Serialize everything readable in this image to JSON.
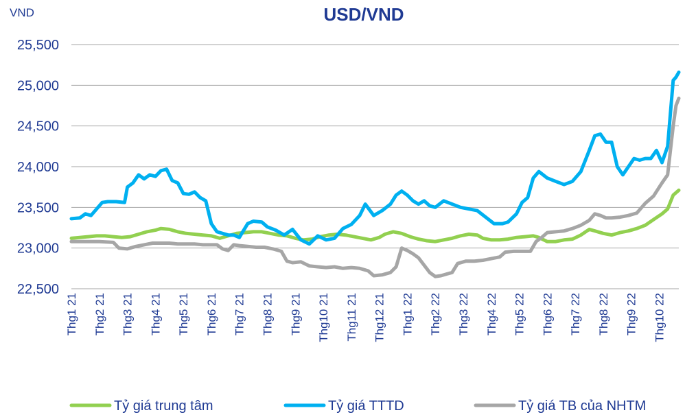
{
  "chart_data": {
    "type": "line",
    "title": "USD/VND",
    "unit_label": "VND",
    "ylim": [
      22500,
      25500
    ],
    "yticks": [
      22500,
      23000,
      23500,
      24000,
      24500,
      25000,
      25500
    ],
    "ytick_labels": [
      "22,500",
      "23,000",
      "23,500",
      "24,000",
      "24,500",
      "25,000",
      "25,500"
    ],
    "categories": [
      "Thg1 21",
      "Thg2 21",
      "Thg3 21",
      "Thg4 21",
      "Thg5 21",
      "Thg6 21",
      "Thg7 21",
      "Thg8 21",
      "Thg9 21",
      "Thg10 21",
      "Thg11 21",
      "Thg12 21",
      "Thg1 22",
      "Thg2 22",
      "Thg3 22",
      "Thg4 22",
      "Thg5 22",
      "Thg6 22",
      "Thg7 22",
      "Thg8 22",
      "Thg9 22",
      "Thg10 22"
    ],
    "x_end": 21.7,
    "grid": "horizontal",
    "legend_position": "bottom",
    "series": [
      {
        "name": "Tỷ giá trung tâm",
        "color": "#92d050",
        "points": [
          [
            0,
            23120
          ],
          [
            0.3,
            23130
          ],
          [
            0.6,
            23140
          ],
          [
            0.9,
            23150
          ],
          [
            1.2,
            23150
          ],
          [
            1.5,
            23140
          ],
          [
            1.8,
            23130
          ],
          [
            2.1,
            23140
          ],
          [
            2.4,
            23170
          ],
          [
            2.7,
            23200
          ],
          [
            3.0,
            23220
          ],
          [
            3.2,
            23240
          ],
          [
            3.5,
            23230
          ],
          [
            3.8,
            23200
          ],
          [
            4.1,
            23180
          ],
          [
            4.4,
            23170
          ],
          [
            4.7,
            23160
          ],
          [
            5.0,
            23150
          ],
          [
            5.3,
            23120
          ],
          [
            5.6,
            23150
          ],
          [
            5.9,
            23180
          ],
          [
            6.2,
            23190
          ],
          [
            6.5,
            23200
          ],
          [
            6.8,
            23200
          ],
          [
            7.1,
            23180
          ],
          [
            7.4,
            23160
          ],
          [
            7.7,
            23150
          ],
          [
            8.0,
            23120
          ],
          [
            8.3,
            23100
          ],
          [
            8.6,
            23110
          ],
          [
            8.9,
            23140
          ],
          [
            9.2,
            23160
          ],
          [
            9.5,
            23170
          ],
          [
            9.8,
            23160
          ],
          [
            10.1,
            23140
          ],
          [
            10.4,
            23120
          ],
          [
            10.7,
            23100
          ],
          [
            11.0,
            23130
          ],
          [
            11.2,
            23170
          ],
          [
            11.5,
            23200
          ],
          [
            11.8,
            23180
          ],
          [
            12.1,
            23140
          ],
          [
            12.4,
            23110
          ],
          [
            12.7,
            23090
          ],
          [
            13.0,
            23080
          ],
          [
            13.3,
            23100
          ],
          [
            13.6,
            23120
          ],
          [
            13.9,
            23150
          ],
          [
            14.2,
            23170
          ],
          [
            14.5,
            23160
          ],
          [
            14.7,
            23120
          ],
          [
            15.0,
            23100
          ],
          [
            15.3,
            23100
          ],
          [
            15.6,
            23110
          ],
          [
            15.9,
            23130
          ],
          [
            16.2,
            23140
          ],
          [
            16.5,
            23150
          ],
          [
            16.7,
            23130
          ],
          [
            17.0,
            23080
          ],
          [
            17.3,
            23080
          ],
          [
            17.6,
            23100
          ],
          [
            17.9,
            23110
          ],
          [
            18.2,
            23160
          ],
          [
            18.5,
            23230
          ],
          [
            18.7,
            23210
          ],
          [
            19.0,
            23180
          ],
          [
            19.3,
            23160
          ],
          [
            19.6,
            23190
          ],
          [
            19.9,
            23210
          ],
          [
            20.2,
            23240
          ],
          [
            20.5,
            23280
          ],
          [
            20.8,
            23350
          ],
          [
            21.1,
            23420
          ],
          [
            21.3,
            23480
          ],
          [
            21.5,
            23650
          ],
          [
            21.7,
            23710
          ]
        ]
      },
      {
        "name": "Tỷ giá TTTD",
        "color": "#00b0f0",
        "points": [
          [
            0,
            23360
          ],
          [
            0.3,
            23370
          ],
          [
            0.5,
            23420
          ],
          [
            0.7,
            23400
          ],
          [
            0.9,
            23480
          ],
          [
            1.1,
            23560
          ],
          [
            1.3,
            23570
          ],
          [
            1.6,
            23570
          ],
          [
            1.9,
            23560
          ],
          [
            2.0,
            23750
          ],
          [
            2.2,
            23800
          ],
          [
            2.4,
            23900
          ],
          [
            2.6,
            23850
          ],
          [
            2.8,
            23900
          ],
          [
            3.0,
            23880
          ],
          [
            3.2,
            23950
          ],
          [
            3.4,
            23970
          ],
          [
            3.6,
            23830
          ],
          [
            3.8,
            23800
          ],
          [
            4.0,
            23670
          ],
          [
            4.2,
            23660
          ],
          [
            4.4,
            23690
          ],
          [
            4.6,
            23620
          ],
          [
            4.8,
            23580
          ],
          [
            5.0,
            23300
          ],
          [
            5.2,
            23200
          ],
          [
            5.4,
            23180
          ],
          [
            5.6,
            23160
          ],
          [
            5.8,
            23160
          ],
          [
            6.0,
            23130
          ],
          [
            6.3,
            23300
          ],
          [
            6.5,
            23330
          ],
          [
            6.8,
            23320
          ],
          [
            7.0,
            23260
          ],
          [
            7.3,
            23220
          ],
          [
            7.6,
            23160
          ],
          [
            7.9,
            23230
          ],
          [
            8.2,
            23100
          ],
          [
            8.5,
            23050
          ],
          [
            8.8,
            23150
          ],
          [
            9.1,
            23100
          ],
          [
            9.4,
            23120
          ],
          [
            9.7,
            23240
          ],
          [
            10.0,
            23290
          ],
          [
            10.3,
            23400
          ],
          [
            10.5,
            23540
          ],
          [
            10.8,
            23400
          ],
          [
            11.1,
            23460
          ],
          [
            11.4,
            23540
          ],
          [
            11.6,
            23650
          ],
          [
            11.8,
            23700
          ],
          [
            12.0,
            23650
          ],
          [
            12.2,
            23580
          ],
          [
            12.4,
            23540
          ],
          [
            12.6,
            23580
          ],
          [
            12.8,
            23520
          ],
          [
            13.0,
            23500
          ],
          [
            13.3,
            23580
          ],
          [
            13.6,
            23540
          ],
          [
            13.9,
            23500
          ],
          [
            14.2,
            23480
          ],
          [
            14.5,
            23460
          ],
          [
            14.8,
            23380
          ],
          [
            15.1,
            23300
          ],
          [
            15.4,
            23300
          ],
          [
            15.6,
            23320
          ],
          [
            15.9,
            23420
          ],
          [
            16.1,
            23560
          ],
          [
            16.3,
            23620
          ],
          [
            16.5,
            23860
          ],
          [
            16.7,
            23940
          ],
          [
            17.0,
            23860
          ],
          [
            17.3,
            23820
          ],
          [
            17.6,
            23780
          ],
          [
            17.9,
            23820
          ],
          [
            18.2,
            23940
          ],
          [
            18.5,
            24200
          ],
          [
            18.7,
            24380
          ],
          [
            18.9,
            24400
          ],
          [
            19.1,
            24300
          ],
          [
            19.3,
            24300
          ],
          [
            19.5,
            24000
          ],
          [
            19.7,
            23900
          ],
          [
            19.9,
            24000
          ],
          [
            20.1,
            24100
          ],
          [
            20.3,
            24080
          ],
          [
            20.5,
            24100
          ],
          [
            20.7,
            24100
          ],
          [
            20.9,
            24200
          ],
          [
            21.1,
            24050
          ],
          [
            21.3,
            24250
          ],
          [
            21.5,
            25060
          ],
          [
            21.6,
            25100
          ],
          [
            21.7,
            25160
          ]
        ]
      },
      {
        "name": "Tỷ giá TB của NHTM",
        "color": "#a6a6a6",
        "points": [
          [
            0,
            23080
          ],
          [
            0.5,
            23080
          ],
          [
            1.0,
            23080
          ],
          [
            1.5,
            23070
          ],
          [
            1.7,
            23000
          ],
          [
            2.0,
            22990
          ],
          [
            2.3,
            23020
          ],
          [
            2.6,
            23040
          ],
          [
            2.9,
            23060
          ],
          [
            3.2,
            23060
          ],
          [
            3.5,
            23060
          ],
          [
            3.8,
            23050
          ],
          [
            4.1,
            23050
          ],
          [
            4.4,
            23050
          ],
          [
            4.7,
            23040
          ],
          [
            5.0,
            23040
          ],
          [
            5.2,
            23040
          ],
          [
            5.4,
            22990
          ],
          [
            5.6,
            22970
          ],
          [
            5.8,
            23040
          ],
          [
            6.0,
            23030
          ],
          [
            6.3,
            23020
          ],
          [
            6.6,
            23010
          ],
          [
            6.9,
            23010
          ],
          [
            7.2,
            22990
          ],
          [
            7.5,
            22960
          ],
          [
            7.7,
            22840
          ],
          [
            7.9,
            22820
          ],
          [
            8.2,
            22830
          ],
          [
            8.5,
            22780
          ],
          [
            8.8,
            22770
          ],
          [
            9.1,
            22760
          ],
          [
            9.4,
            22770
          ],
          [
            9.7,
            22750
          ],
          [
            10.0,
            22760
          ],
          [
            10.3,
            22750
          ],
          [
            10.6,
            22720
          ],
          [
            10.8,
            22660
          ],
          [
            11.1,
            22670
          ],
          [
            11.4,
            22700
          ],
          [
            11.6,
            22770
          ],
          [
            11.8,
            23000
          ],
          [
            12.0,
            22970
          ],
          [
            12.2,
            22930
          ],
          [
            12.4,
            22880
          ],
          [
            12.6,
            22790
          ],
          [
            12.8,
            22700
          ],
          [
            13.0,
            22650
          ],
          [
            13.2,
            22660
          ],
          [
            13.4,
            22680
          ],
          [
            13.6,
            22700
          ],
          [
            13.8,
            22810
          ],
          [
            14.1,
            22840
          ],
          [
            14.4,
            22840
          ],
          [
            14.7,
            22850
          ],
          [
            15.0,
            22870
          ],
          [
            15.3,
            22890
          ],
          [
            15.5,
            22950
          ],
          [
            15.8,
            22960
          ],
          [
            16.1,
            22960
          ],
          [
            16.4,
            22960
          ],
          [
            16.6,
            23080
          ],
          [
            16.8,
            23130
          ],
          [
            17.0,
            23190
          ],
          [
            17.3,
            23200
          ],
          [
            17.6,
            23210
          ],
          [
            17.9,
            23240
          ],
          [
            18.2,
            23280
          ],
          [
            18.5,
            23340
          ],
          [
            18.7,
            23420
          ],
          [
            18.9,
            23400
          ],
          [
            19.1,
            23370
          ],
          [
            19.3,
            23370
          ],
          [
            19.6,
            23380
          ],
          [
            19.9,
            23400
          ],
          [
            20.2,
            23430
          ],
          [
            20.5,
            23550
          ],
          [
            20.8,
            23640
          ],
          [
            21.1,
            23800
          ],
          [
            21.3,
            23900
          ],
          [
            21.5,
            24500
          ],
          [
            21.6,
            24750
          ],
          [
            21.7,
            24840
          ]
        ]
      }
    ]
  }
}
